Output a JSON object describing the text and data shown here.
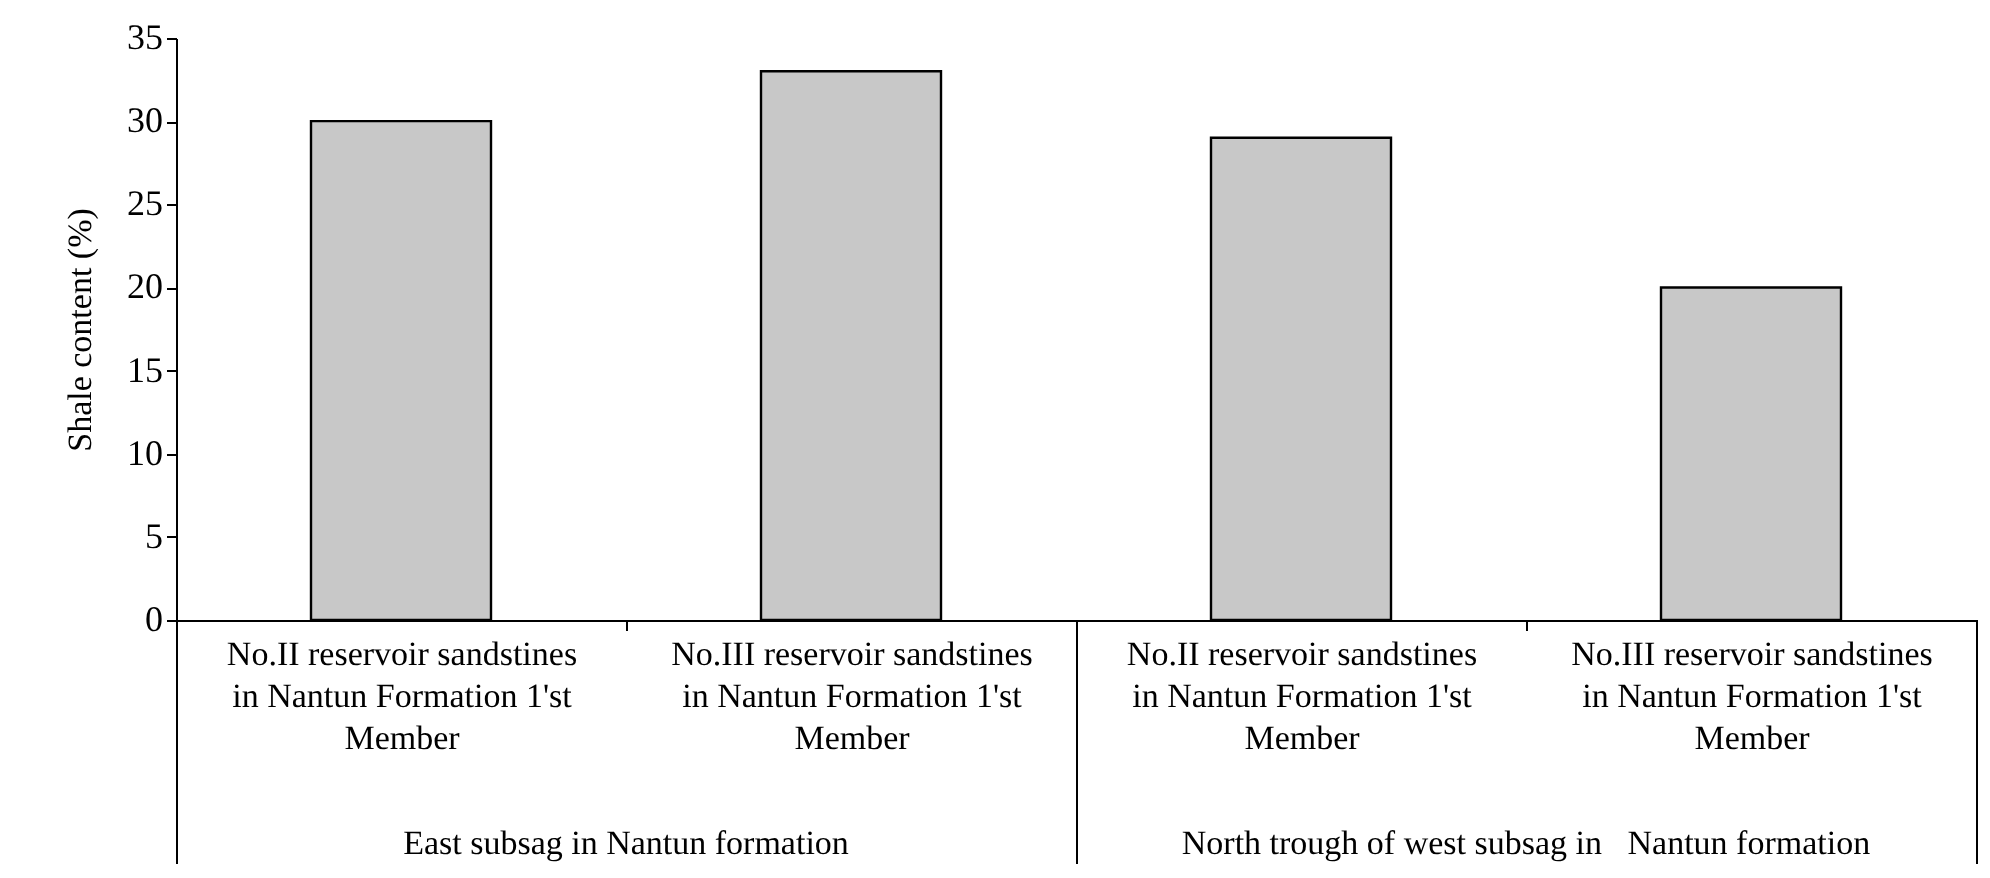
{
  "chart_data": {
    "type": "bar",
    "categories": [
      "No.II reservoir sandstines in Nantun Formation 1'st Member",
      "No.III reservoir sandstines in Nantun Formation 1'st Member",
      "No.II reservoir sandstines in Nantun Formation 1'st Member",
      "No.III reservoir sandstines in Nantun Formation 1'st Member"
    ],
    "values": [
      30,
      33,
      29,
      20
    ],
    "color": "#c8c8c8",
    "ylabel": "Shale content (%)",
    "ylim": [
      0,
      35
    ],
    "yticks": [
      0,
      5,
      10,
      15,
      20,
      25,
      30,
      35
    ],
    "annotations": [
      "East subsag in Nantun formation",
      "North trough of west subsag in   Nantun formation"
    ]
  }
}
